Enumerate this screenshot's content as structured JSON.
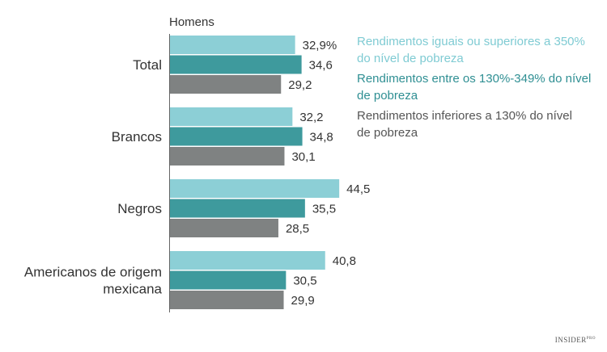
{
  "chart_data": {
    "type": "bar",
    "orientation": "horizontal",
    "panel_label": "Homens",
    "categories": [
      [
        "Total"
      ],
      [
        "Brancos"
      ],
      [
        "Negros"
      ],
      [
        "Americanos de origem",
        "mexicana"
      ]
    ],
    "series": [
      {
        "name": "Rendimentos iguais ou superiores a 350% do nível de pobreza",
        "legend_lines": [
          "Rendimentos iguais ou superiores a 350%",
          "do nível de pobreza"
        ],
        "color": "#8ccfd6",
        "values": [
          32.9,
          32.2,
          44.5,
          40.8
        ],
        "labels": [
          "32,9%",
          "32,2",
          "44,5",
          "40,8"
        ]
      },
      {
        "name": "Rendimentos entre os 130%-349% do nível de pobreza",
        "legend_lines": [
          "Rendimentos entre os 130%-349% do nível",
          "de pobreza"
        ],
        "color": "#3e9a9d",
        "values": [
          34.6,
          34.8,
          35.5,
          30.5
        ],
        "labels": [
          "34,6",
          "34,8",
          "35,5",
          "30,5"
        ]
      },
      {
        "name": "Rendimentos inferiores a 130% do nível de pobreza",
        "legend_lines": [
          "Rendimentos inferiores a 130% do nível",
          "de pobreza"
        ],
        "color": "#7f8282",
        "values": [
          29.2,
          30.1,
          28.5,
          29.9
        ],
        "labels": [
          "29,2",
          "30,1",
          "28,5",
          "29,9"
        ]
      }
    ],
    "xlim": [
      0,
      100
    ],
    "grid": false,
    "legend_position": "top-right"
  },
  "legend_colors": [
    "#7fcbd3",
    "#2f8f93",
    "#555555"
  ],
  "brand": {
    "name": "INSIDER",
    "suffix": "PRO"
  }
}
